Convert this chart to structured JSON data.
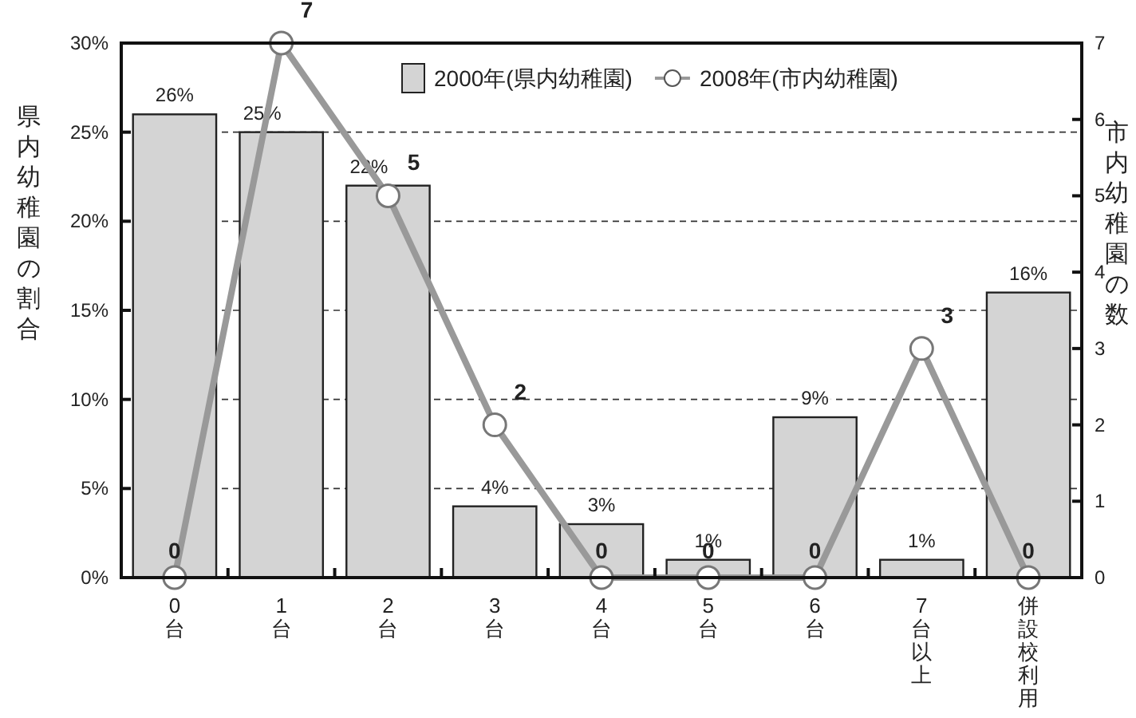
{
  "chart_data": {
    "type": "bar",
    "categories": [
      "0台",
      "1台",
      "2台",
      "3台",
      "4台",
      "5台",
      "6台",
      "7台以上",
      "併設校利用"
    ],
    "ylabel": "県内幼稚園の割合",
    "y2label": "市内幼稚園の数",
    "series": [
      {
        "name": "2000年(県内幼稚園)",
        "color": "#d4d4d4",
        "values": [
          26,
          25,
          22,
          4,
          3,
          1,
          9,
          1,
          16
        ],
        "value_labels": [
          "26%",
          "25%",
          "22%",
          "4%",
          "3%",
          "1%",
          "9%",
          "1%",
          "16%"
        ]
      },
      {
        "name": "2008年(市内幼稚園)",
        "type": "line",
        "axis": "y2",
        "color": "#999999",
        "marker": "circle",
        "values": [
          0,
          7,
          5,
          2,
          0,
          0,
          0,
          3,
          0
        ],
        "data_labels": true
      }
    ],
    "ylim": [
      0,
      30
    ],
    "yticks": [
      {
        "value": 0,
        "label": "0%"
      },
      {
        "value": 5,
        "label": "5%"
      },
      {
        "value": 10,
        "label": "10%"
      },
      {
        "value": 15,
        "label": "15%"
      },
      {
        "value": 20,
        "label": "20%"
      },
      {
        "value": 25,
        "label": "25%"
      },
      {
        "value": 30,
        "label": "30%"
      }
    ],
    "y2lim": [
      0,
      7
    ],
    "y2ticks": [
      0,
      1,
      2,
      3,
      4,
      5,
      6,
      7
    ],
    "grid": "y",
    "legend": "top"
  }
}
